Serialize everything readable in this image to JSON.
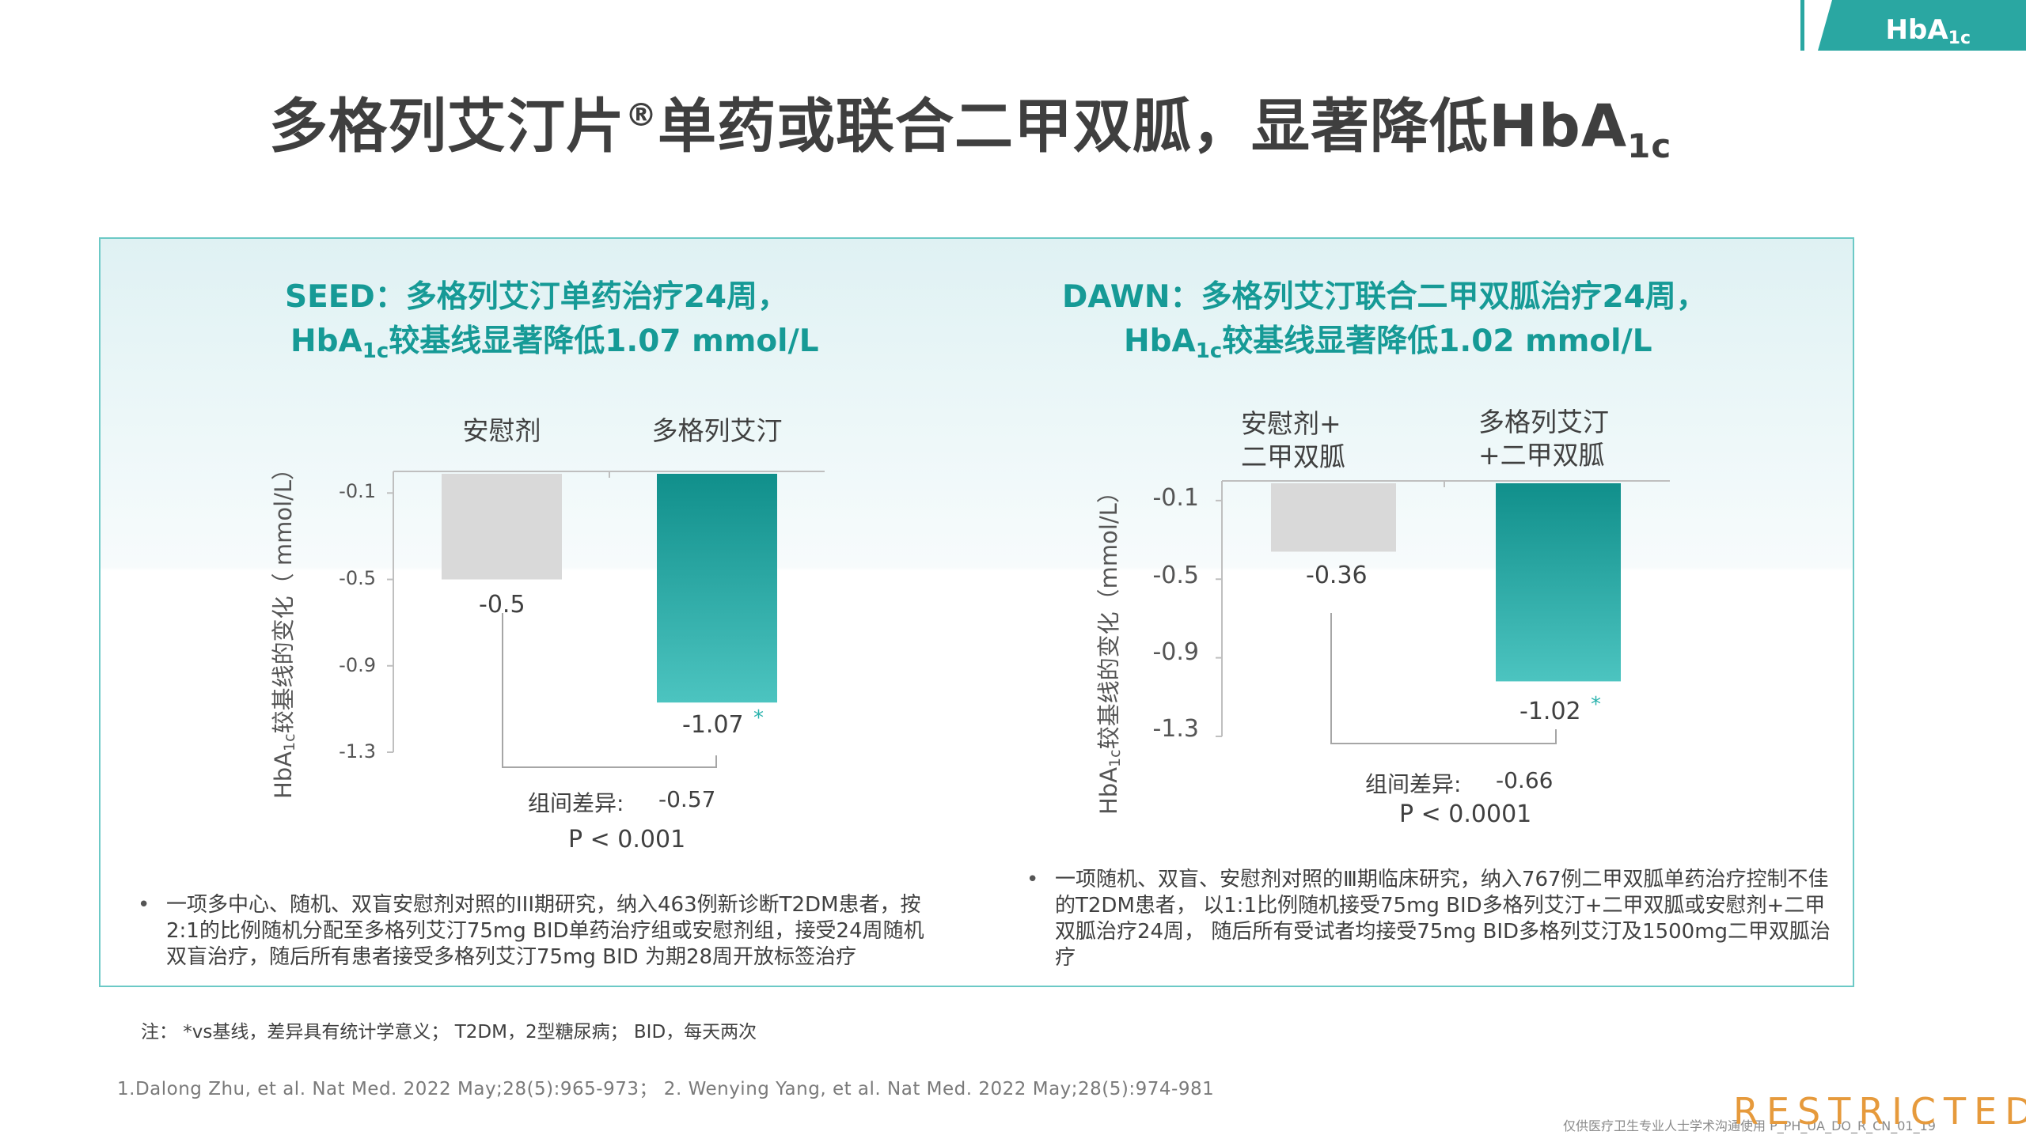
{
  "tag": {
    "main": "HbA",
    "sub": "1c"
  },
  "slide_title": {
    "main": "多格列艾汀片",
    "reg": "®",
    "rest": "单药或联合二甲双胍，显著降低HbA",
    "sub": "1c"
  },
  "colors": {
    "accent": "#169a96",
    "placebo_bar": "#d9d9d9",
    "drug_bar_top": "#108f8b",
    "drug_bar_bottom": "#4cc4c0",
    "tag_bg": "#2aa7a2"
  },
  "left": {
    "heading_line1": "SEED：多格列艾汀单药治疗24周，",
    "heading_line2_pre": "HbA",
    "heading_line2_sub": "1c",
    "heading_line2_post": "较基线显著降低1.07  mmol/L",
    "y_title_pre": "HbA",
    "y_title_sub": "1c",
    "y_title_post": "较基线的变化（ mmol/L）",
    "ticks": [
      "-0.1",
      "-0.5",
      "-0.9",
      "-1.3"
    ],
    "categories": [
      "安慰剂",
      "多格列艾汀"
    ],
    "value_labels": [
      "-0.5",
      "-1.07"
    ],
    "star": "*",
    "diff_label": "组间差异:",
    "diff_value": "-0.57",
    "p_value": "P < 0.001",
    "bullet": "一项多中心、随机、双盲安慰剂对照的III期研究，纳入463例新诊断T2DM患者，按2:1的比例随机分配至多格列艾汀75mg  BID单药治疗组或安慰剂组，接受24周随机双盲治疗，随后所有患者接受多格列艾汀75mg BID 为期28周开放标签治疗"
  },
  "right": {
    "heading_line1": "DAWN：多格列艾汀联合二甲双胍治疗24周，",
    "heading_line2_pre": "HbA",
    "heading_line2_sub": "1c",
    "heading_line2_post": "较基线显著降低1.02  mmol/L",
    "y_title_pre": "HbA",
    "y_title_sub": "1c",
    "y_title_post": "较基线的变化（mmol/L）",
    "ticks": [
      "-0.1",
      "-0.5",
      "-0.9",
      "-1.3"
    ],
    "categories_line1": [
      "安慰剂+",
      "多格列艾汀"
    ],
    "categories_line2": [
      "二甲双胍",
      "+二甲双胍"
    ],
    "value_labels": [
      "-0.36",
      "-1.02"
    ],
    "star": "*",
    "diff_label": "组间差异:",
    "diff_value": "-0.66",
    "p_value": "P < 0.0001",
    "bullet": "一项随机、双盲、安慰剂对照的Ⅲ期临床研究，纳入767例二甲双胍单药治疗控制不佳的T2DM患者， 以1:1比例随机接受75mg BID多格列艾汀+二甲双胍或安慰剂+二甲双胍治疗24周， 随后所有受试者均接受75mg BID多格列艾汀及1500mg二甲双胍治疗"
  },
  "note": "注： *vs基线，差异具有统计学意义； T2DM，2型糖尿病； BID，每天两次",
  "reference": "1.Dalong Zhu, et al. Nat Med. 2022 May;28(5):965-973； 2. Wenying Yang, et al. Nat Med. 2022 May;28(5):974-981",
  "footer": "仅供医疗卫生专业人士学术沟通使用 P_PH_UA_DO_R_CN_01_19",
  "restricted": "RESTRICTED",
  "chart_data": [
    {
      "type": "bar",
      "title": "SEED：多格列艾汀单药治疗24周，HbA1c较基线显著降低1.07 mmol/L",
      "categories": [
        "安慰剂",
        "多格列艾汀"
      ],
      "values": [
        -0.5,
        -1.07
      ],
      "ylabel": "HbA1c较基线的变化（ mmol/L）",
      "yticks": [
        -0.1,
        -0.5,
        -0.9,
        -1.3
      ],
      "ylim": [
        -1.3,
        0
      ],
      "difference": -0.57,
      "p": "P < 0.001"
    },
    {
      "type": "bar",
      "title": "DAWN：多格列艾汀联合二甲双胍治疗24周，HbA1c较基线显著降低1.02 mmol/L",
      "categories": [
        "安慰剂+二甲双胍",
        "多格列艾汀+二甲双胍"
      ],
      "values": [
        -0.36,
        -1.02
      ],
      "ylabel": "HbA1c较基线的变化（mmol/L）",
      "yticks": [
        -0.1,
        -0.5,
        -0.9,
        -1.3
      ],
      "ylim": [
        -1.3,
        0
      ],
      "difference": -0.66,
      "p": "P < 0.0001"
    }
  ]
}
